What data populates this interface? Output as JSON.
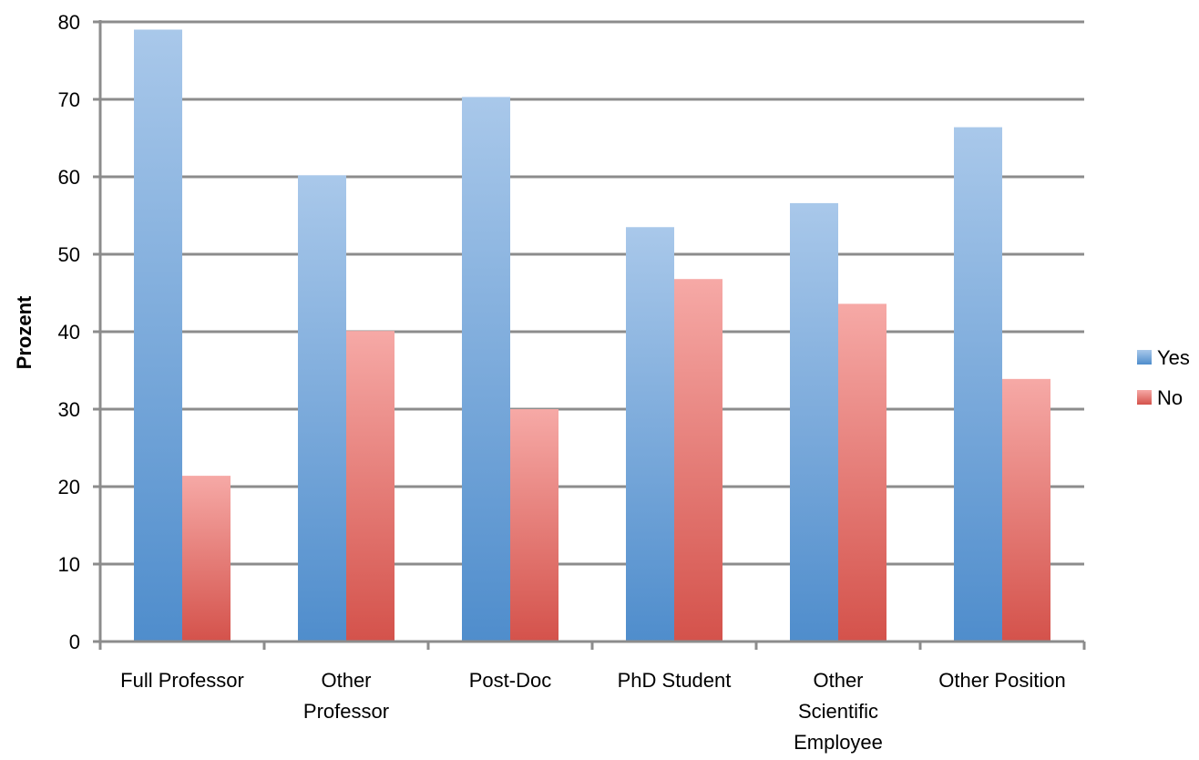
{
  "chart_data": {
    "type": "bar",
    "title": "",
    "xlabel": "",
    "ylabel": "Prozent",
    "ylim": [
      0,
      80
    ],
    "yticks": [
      0,
      10,
      20,
      30,
      40,
      50,
      60,
      70,
      80
    ],
    "grid": true,
    "legend_position": "right",
    "categories": [
      [
        "Full Professor"
      ],
      [
        "Other",
        "Professor"
      ],
      [
        "Post-Doc"
      ],
      [
        "PhD Student"
      ],
      [
        "Other",
        "Scientific",
        "Employee"
      ],
      [
        "Other Position"
      ]
    ],
    "series": [
      {
        "name": "Yes",
        "color": "#5b93d3",
        "values": [
          79,
          60.2,
          70.3,
          53.5,
          56.6,
          66.4
        ]
      },
      {
        "name": "No",
        "color": "#e0605a",
        "values": [
          21.4,
          40.1,
          30.0,
          46.8,
          43.6,
          33.9
        ]
      }
    ]
  }
}
